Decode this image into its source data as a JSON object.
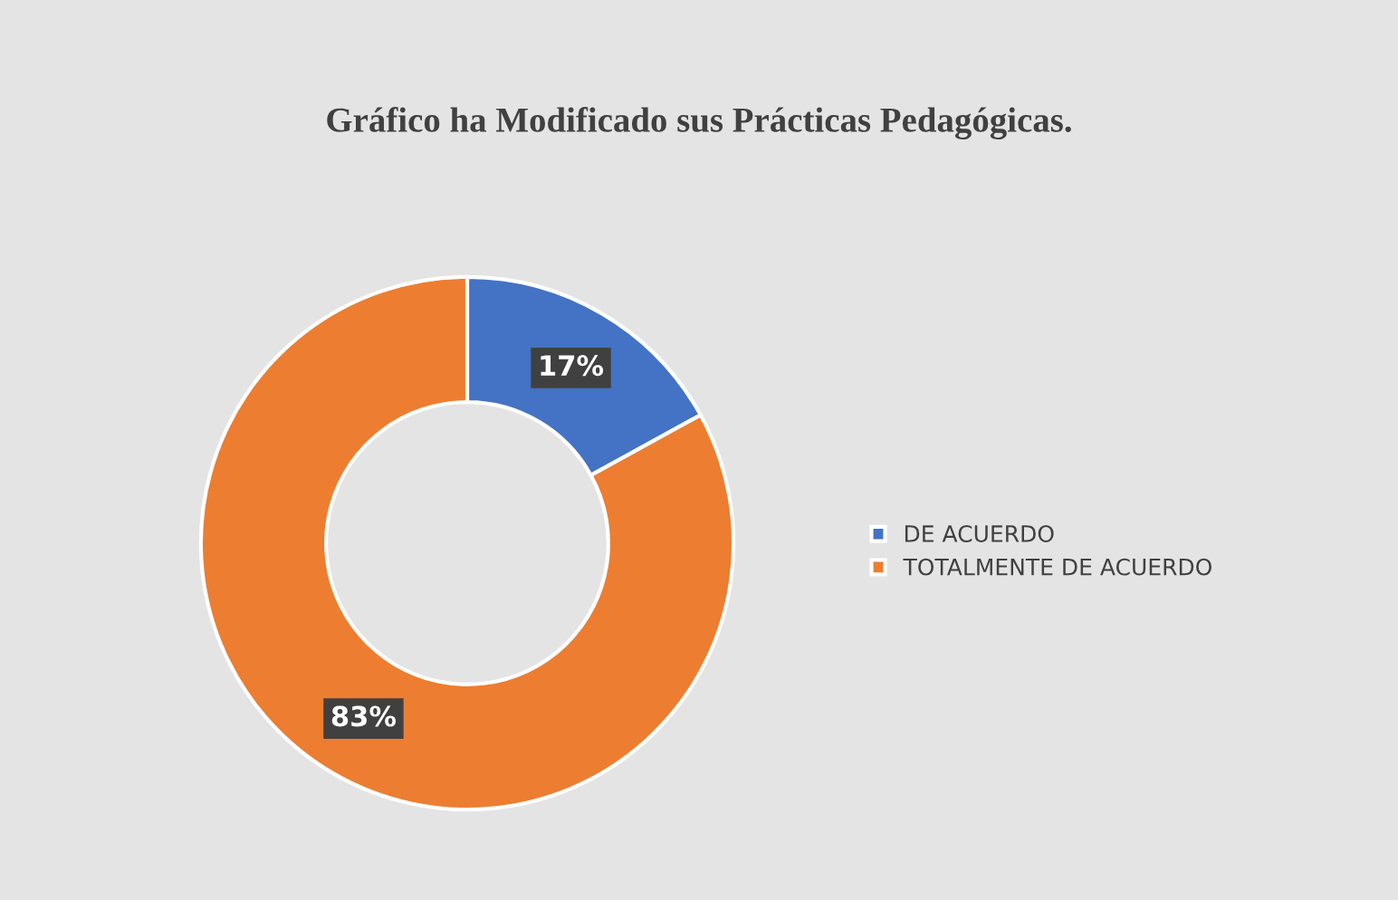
{
  "chart_data": {
    "type": "donut",
    "title": "Gráfico ha Modificado sus Prácticas Pedagógicas.",
    "categories": [
      "DE ACUERDO",
      "TOTALMENTE DE ACUERDO"
    ],
    "values": [
      17,
      83
    ],
    "colors": [
      "#4472c4",
      "#ed7d31"
    ],
    "value_labels": [
      "17%",
      "83%"
    ],
    "legend": "right"
  }
}
